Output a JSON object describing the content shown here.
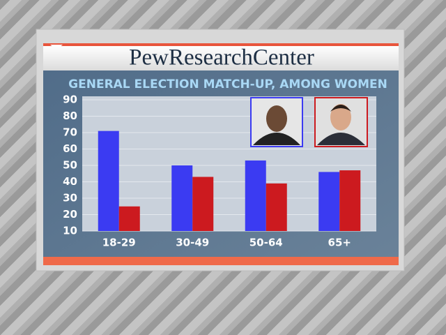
{
  "chart_data": {
    "type": "bar",
    "title": "PewResearchCenter",
    "subtitle": "GENERAL ELECTION MATCH-UP, AMONG WOMEN",
    "categories": [
      "18-29",
      "30-49",
      "50-64",
      "65+"
    ],
    "series": [
      {
        "color": "#3b3bf2",
        "values": [
          71,
          50,
          53,
          46
        ]
      },
      {
        "color": "#cc1a1f",
        "values": [
          25,
          43,
          39,
          47
        ]
      }
    ],
    "ylim": [
      10,
      90
    ],
    "yticks": [
      10,
      20,
      30,
      40,
      50,
      60,
      70,
      80,
      90
    ],
    "grid": true
  }
}
